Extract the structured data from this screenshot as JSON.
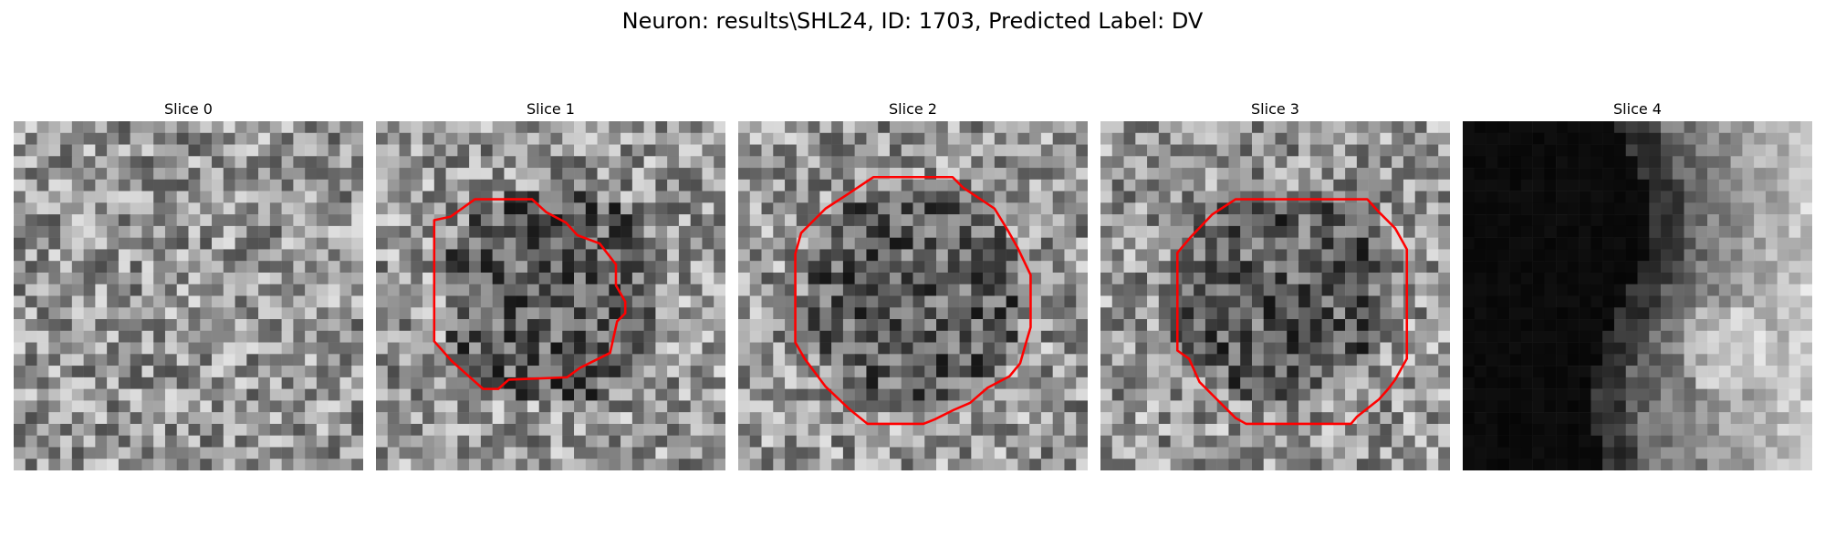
{
  "figure": {
    "title": "Neuron: results\\SHL24, ID: 1703, Predicted Label: DV"
  },
  "colors": {
    "contour": "#ff0000",
    "background": "#ffffff"
  },
  "panels": [
    {
      "title": "Slice 0",
      "has_contour": false,
      "kind": "noise"
    },
    {
      "title": "Slice 1",
      "has_contour": true,
      "kind": "noise"
    },
    {
      "title": "Slice 2",
      "has_contour": true,
      "kind": "noise"
    },
    {
      "title": "Slice 3",
      "has_contour": true,
      "kind": "noise"
    },
    {
      "title": "Slice 4",
      "has_contour": false,
      "kind": "dark-band"
    }
  ]
}
